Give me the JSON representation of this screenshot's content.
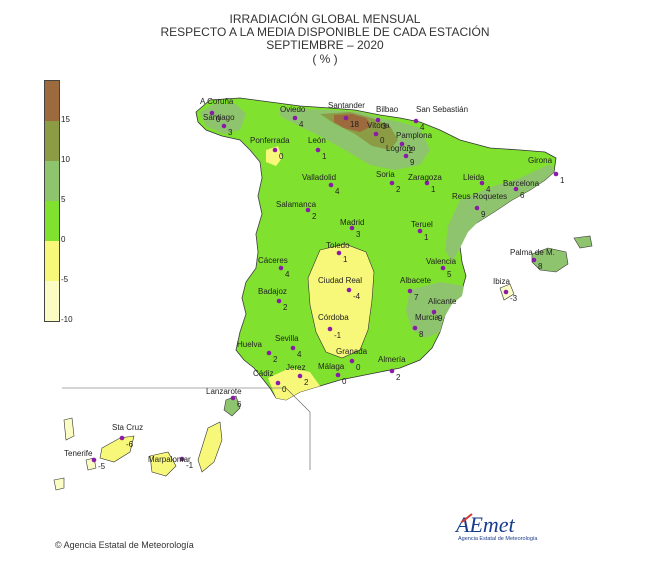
{
  "title": {
    "line1": "IRRADIACIÓN GLOBAL MENSUAL",
    "line2": "RESPECTO A LA MEDIA DISPONIBLE DE CADA ESTACIÓN",
    "line3": "SEPTIEMBRE  – 2020",
    "line4": "( % )"
  },
  "legend": {
    "bands": [
      {
        "from": 15,
        "to": 20,
        "color": "#9c6a3c"
      },
      {
        "from": 10,
        "to": 15,
        "color": "#8c9c45"
      },
      {
        "from": 5,
        "to": 10,
        "color": "#8fc46f"
      },
      {
        "from": 0,
        "to": 5,
        "color": "#80e22e"
      },
      {
        "from": -5,
        "to": 0,
        "color": "#f7f77a"
      },
      {
        "from": -10,
        "to": -5,
        "color": "#fbfbc4"
      }
    ],
    "ticks": [
      "15",
      "10",
      "5",
      "0",
      "-5",
      "-10"
    ]
  },
  "stations": [
    {
      "name": "A Coruña",
      "value": "0"
    },
    {
      "name": "Santiago",
      "value": "3"
    },
    {
      "name": "Oviedo",
      "value": "4"
    },
    {
      "name": "Santander",
      "value": "18"
    },
    {
      "name": "Bilbao",
      "value": "3"
    },
    {
      "name": "San Sebastián",
      "value": "4"
    },
    {
      "name": "Ponferrada",
      "value": "0"
    },
    {
      "name": "León",
      "value": "1"
    },
    {
      "name": "Vitoria",
      "value": "0"
    },
    {
      "name": "Pamplona",
      "value": "-2"
    },
    {
      "name": "Logroño",
      "value": "9"
    },
    {
      "name": "Girona",
      "value": "1"
    },
    {
      "name": "Valladolid",
      "value": "4"
    },
    {
      "name": "Soria",
      "value": "2"
    },
    {
      "name": "Zaragoza",
      "value": "1"
    },
    {
      "name": "Lleida",
      "value": "4"
    },
    {
      "name": "Barcelona",
      "value": "6"
    },
    {
      "name": "Salamanca",
      "value": "2"
    },
    {
      "name": "Reus Roquetes",
      "value": "9"
    },
    {
      "name": "Madrid",
      "value": "3"
    },
    {
      "name": "Teruel",
      "value": "1"
    },
    {
      "name": "Toledo",
      "value": "1"
    },
    {
      "name": "Cáceres",
      "value": "4"
    },
    {
      "name": "Valencia",
      "value": "5"
    },
    {
      "name": "Palma de M.",
      "value": "8"
    },
    {
      "name": "Ciudad Real",
      "value": "-4"
    },
    {
      "name": "Albacete",
      "value": "7"
    },
    {
      "name": "Ibiza",
      "value": "-3"
    },
    {
      "name": "Badajoz",
      "value": "2"
    },
    {
      "name": "Alicante",
      "value": "9"
    },
    {
      "name": "Córdoba",
      "value": "-1"
    },
    {
      "name": "Murcia",
      "value": "8"
    },
    {
      "name": "Huelva",
      "value": "2"
    },
    {
      "name": "Sevilla",
      "value": "4"
    },
    {
      "name": "Granada",
      "value": "0"
    },
    {
      "name": "Almería",
      "value": "2"
    },
    {
      "name": "Jerez",
      "value": "2"
    },
    {
      "name": "Cádiz",
      "value": "0"
    },
    {
      "name": "Málaga",
      "value": "0"
    },
    {
      "name": "Lanzarote",
      "value": "6"
    },
    {
      "name": "Sta Cruz",
      "value": "-6"
    },
    {
      "name": "Tenerife",
      "value": "-5"
    },
    {
      "name": "Marpalomar",
      "value": "-1"
    }
  ],
  "credit": "Agencia Estatal de Meteorología",
  "logo": {
    "brand": "AEmet",
    "subtitle": "Agencia Estatal de Meteorología",
    "accent": "#1a3c8c",
    "accent2": "#d43a2f"
  }
}
